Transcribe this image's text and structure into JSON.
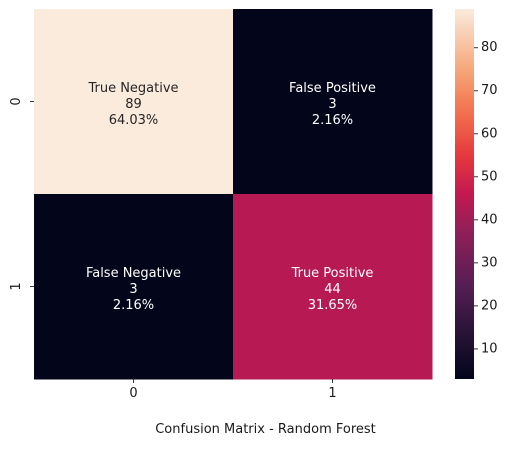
{
  "chart_data": {
    "type": "heatmap",
    "title": "Confusion Matrix - Random Forest",
    "x_categories": [
      "0",
      "1"
    ],
    "y_categories": [
      "0",
      "1"
    ],
    "cells": [
      {
        "row": 0,
        "col": 0,
        "name": "True Negative",
        "value": 89,
        "percent": "64.03%"
      },
      {
        "row": 0,
        "col": 1,
        "name": "False Positive",
        "value": 3,
        "percent": "2.16%"
      },
      {
        "row": 1,
        "col": 0,
        "name": "False Negative",
        "value": 3,
        "percent": "2.16%"
      },
      {
        "row": 1,
        "col": 1,
        "name": "True Positive",
        "value": 44,
        "percent": "31.65%"
      }
    ],
    "colorbar": {
      "min": 3,
      "max": 89,
      "ticks": [
        10,
        20,
        30,
        40,
        50,
        60,
        70,
        80
      ],
      "colormap": "rocket"
    },
    "grid": false
  }
}
